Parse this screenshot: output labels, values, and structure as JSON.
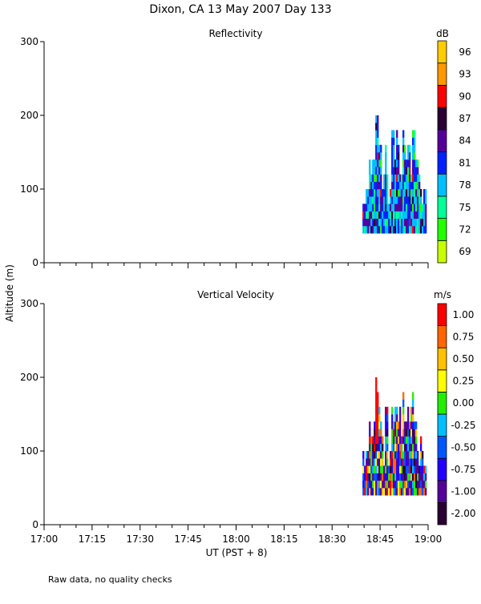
{
  "title": "Dixon, CA 13 May 2007  Day 133",
  "footnote": "Raw data, no quality checks",
  "chart_data": [
    {
      "type": "heatmap",
      "title": "Reflectivity",
      "ylabel": "Altitude (m)",
      "xlabel": "UT  (PST + 8)",
      "ylim": [
        0,
        300
      ],
      "yticks": [
        "0",
        "100",
        "200",
        "300"
      ],
      "xlim_minutes": [
        0,
        120
      ],
      "xticks": [
        "17:00",
        "17:15",
        "17:30",
        "17:45",
        "18:00",
        "18:15",
        "18:30",
        "18:45",
        "19:00"
      ],
      "colorbar_unit": "dB",
      "colorbar_labels": [
        "69",
        "72",
        "75",
        "78",
        "81",
        "84",
        "87",
        "90",
        "93",
        "96"
      ],
      "colorbar_colors": [
        "#c8ff00",
        "#22ff00",
        "#00ff99",
        "#00bfff",
        "#0022ff",
        "#550099",
        "#2a0033",
        "#ff0000",
        "#ff9900",
        "#ffcc00"
      ],
      "data_start_min": 99.5,
      "data_end_min": 119.5,
      "column_base_m": 40,
      "column_tops_m": [
        100,
        140,
        140,
        160,
        220,
        180,
        120,
        160,
        120,
        180,
        180,
        180,
        160,
        180,
        180,
        160,
        180,
        140,
        120,
        120,
        100
      ]
    },
    {
      "type": "heatmap",
      "title": "Vertical Velocity",
      "ylabel": "Altitude (m)",
      "xlabel": "UT  (PST + 8)",
      "ylim": [
        0,
        300
      ],
      "yticks": [
        "0",
        "100",
        "200",
        "300"
      ],
      "xlim_minutes": [
        0,
        120
      ],
      "xticks": [
        "17:00",
        "17:15",
        "17:30",
        "17:45",
        "18:00",
        "18:15",
        "18:30",
        "18:45",
        "19:00"
      ],
      "colorbar_unit": "m/s",
      "colorbar_labels": [
        "-2.00",
        "-1.00",
        "-0.75",
        "-0.50",
        "-0.25",
        "0.00",
        "0.25",
        "0.50",
        "0.75",
        "1.00"
      ],
      "colorbar_colors": [
        "#2a0033",
        "#550099",
        "#2200ff",
        "#0055ff",
        "#00bfff",
        "#22ee00",
        "#ffff00",
        "#ffc000",
        "#ff6600",
        "#ff0000"
      ],
      "data_start_min": 99.5,
      "data_end_min": 119.5,
      "column_base_m": 40,
      "column_tops_m": [
        100,
        140,
        140,
        160,
        220,
        180,
        120,
        160,
        120,
        180,
        180,
        180,
        160,
        180,
        180,
        160,
        180,
        140,
        120,
        120,
        100
      ]
    }
  ]
}
